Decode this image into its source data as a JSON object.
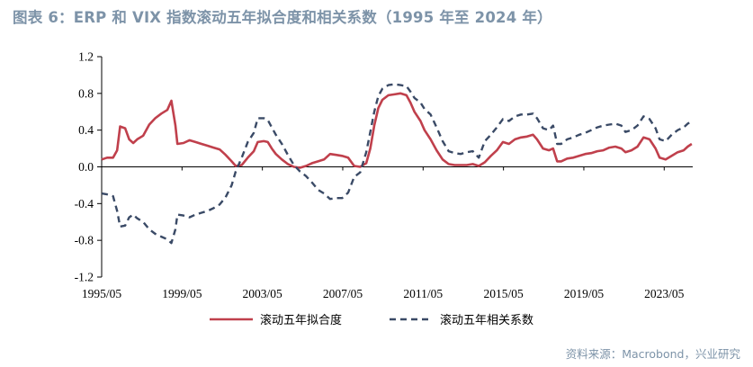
{
  "title": "图表 6：ERP 和 VIX 指数滚动五年拟合度和相关系数（1995 年至 2024 年）",
  "source": "资料来源：Macrobond，兴业研究",
  "colors": {
    "title": "#7d93a8",
    "series_fit": "#c0404c",
    "series_corr": "#3a4a66"
  },
  "chart_data": {
    "type": "line",
    "x_range": [
      1995.33,
      2024.75
    ],
    "x_ticks": [
      {
        "label": "1995/05",
        "x": 1995.33
      },
      {
        "label": "1999/05",
        "x": 1999.33
      },
      {
        "label": "2003/05",
        "x": 2003.33
      },
      {
        "label": "2007/05",
        "x": 2007.33
      },
      {
        "label": "2011/05",
        "x": 2011.33
      },
      {
        "label": "2015/05",
        "x": 2015.33
      },
      {
        "label": "2019/05",
        "x": 2019.33
      },
      {
        "label": "2023/05",
        "x": 2023.33
      }
    ],
    "ylim": [
      -1.2,
      1.2
    ],
    "y_ticks": [
      {
        "label": "1.2",
        "v": 1.2
      },
      {
        "label": "0.8",
        "v": 0.8
      },
      {
        "label": "0.4",
        "v": 0.4
      },
      {
        "label": "0.0",
        "v": 0.0
      },
      {
        "label": "-0.4",
        "v": -0.4
      },
      {
        "label": "-0.8",
        "v": -0.8
      },
      {
        "label": "-1.2",
        "v": -1.2
      }
    ],
    "legend_position": "bottom",
    "series": [
      {
        "name": "滚动五年拟合度",
        "style": "solid",
        "points": [
          [
            1995.33,
            0.08
          ],
          [
            1995.6,
            0.1
          ],
          [
            1995.9,
            0.1
          ],
          [
            1996.1,
            0.18
          ],
          [
            1996.25,
            0.44
          ],
          [
            1996.5,
            0.42
          ],
          [
            1996.7,
            0.3
          ],
          [
            1996.9,
            0.26
          ],
          [
            1997.1,
            0.3
          ],
          [
            1997.4,
            0.34
          ],
          [
            1997.7,
            0.46
          ],
          [
            1998.0,
            0.53
          ],
          [
            1998.3,
            0.58
          ],
          [
            1998.6,
            0.62
          ],
          [
            1998.8,
            0.72
          ],
          [
            1999.0,
            0.45
          ],
          [
            1999.1,
            0.25
          ],
          [
            1999.4,
            0.26
          ],
          [
            1999.7,
            0.29
          ],
          [
            2000.0,
            0.27
          ],
          [
            2000.3,
            0.25
          ],
          [
            2000.6,
            0.23
          ],
          [
            2000.9,
            0.21
          ],
          [
            2001.2,
            0.19
          ],
          [
            2001.5,
            0.13
          ],
          [
            2001.8,
            0.06
          ],
          [
            2002.0,
            0.01
          ],
          [
            2002.3,
            0.02
          ],
          [
            2002.6,
            0.1
          ],
          [
            2002.9,
            0.17
          ],
          [
            2003.1,
            0.27
          ],
          [
            2003.4,
            0.28
          ],
          [
            2003.6,
            0.27
          ],
          [
            2003.8,
            0.2
          ],
          [
            2004.0,
            0.14
          ],
          [
            2004.3,
            0.08
          ],
          [
            2004.6,
            0.03
          ],
          [
            2004.9,
            0.0
          ],
          [
            2005.2,
            -0.01
          ],
          [
            2005.5,
            0.01
          ],
          [
            2005.8,
            0.04
          ],
          [
            2006.1,
            0.06
          ],
          [
            2006.4,
            0.08
          ],
          [
            2006.7,
            0.14
          ],
          [
            2007.0,
            0.13
          ],
          [
            2007.3,
            0.12
          ],
          [
            2007.6,
            0.1
          ],
          [
            2007.9,
            0.01
          ],
          [
            2008.2,
            0.0
          ],
          [
            2008.5,
            0.04
          ],
          [
            2008.7,
            0.2
          ],
          [
            2008.9,
            0.45
          ],
          [
            2009.1,
            0.64
          ],
          [
            2009.3,
            0.73
          ],
          [
            2009.6,
            0.78
          ],
          [
            2009.9,
            0.79
          ],
          [
            2010.2,
            0.8
          ],
          [
            2010.5,
            0.78
          ],
          [
            2010.7,
            0.7
          ],
          [
            2010.9,
            0.6
          ],
          [
            2011.2,
            0.5
          ],
          [
            2011.4,
            0.4
          ],
          [
            2011.7,
            0.3
          ],
          [
            2012.0,
            0.18
          ],
          [
            2012.3,
            0.08
          ],
          [
            2012.6,
            0.03
          ],
          [
            2012.9,
            0.02
          ],
          [
            2013.2,
            0.02
          ],
          [
            2013.5,
            0.02
          ],
          [
            2013.8,
            0.03
          ],
          [
            2014.1,
            0.01
          ],
          [
            2014.4,
            0.05
          ],
          [
            2014.7,
            0.12
          ],
          [
            2015.0,
            0.18
          ],
          [
            2015.3,
            0.27
          ],
          [
            2015.6,
            0.25
          ],
          [
            2015.9,
            0.3
          ],
          [
            2016.2,
            0.32
          ],
          [
            2016.5,
            0.33
          ],
          [
            2016.8,
            0.35
          ],
          [
            2017.0,
            0.3
          ],
          [
            2017.3,
            0.2
          ],
          [
            2017.6,
            0.18
          ],
          [
            2017.8,
            0.2
          ],
          [
            2018.0,
            0.06
          ],
          [
            2018.2,
            0.06
          ],
          [
            2018.5,
            0.09
          ],
          [
            2018.8,
            0.1
          ],
          [
            2019.1,
            0.12
          ],
          [
            2019.4,
            0.14
          ],
          [
            2019.7,
            0.15
          ],
          [
            2020.0,
            0.17
          ],
          [
            2020.3,
            0.18
          ],
          [
            2020.6,
            0.21
          ],
          [
            2020.9,
            0.22
          ],
          [
            2021.2,
            0.2
          ],
          [
            2021.4,
            0.16
          ],
          [
            2021.7,
            0.18
          ],
          [
            2022.0,
            0.22
          ],
          [
            2022.3,
            0.32
          ],
          [
            2022.6,
            0.3
          ],
          [
            2022.9,
            0.2
          ],
          [
            2023.1,
            0.1
          ],
          [
            2023.4,
            0.08
          ],
          [
            2023.7,
            0.12
          ],
          [
            2024.0,
            0.16
          ],
          [
            2024.3,
            0.18
          ],
          [
            2024.5,
            0.22
          ],
          [
            2024.7,
            0.25
          ]
        ]
      },
      {
        "name": "滚动五年相关系数",
        "style": "dashed",
        "points": [
          [
            1995.33,
            -0.29
          ],
          [
            1995.6,
            -0.3
          ],
          [
            1995.9,
            -0.32
          ],
          [
            1996.1,
            -0.48
          ],
          [
            1996.25,
            -0.65
          ],
          [
            1996.5,
            -0.64
          ],
          [
            1996.7,
            -0.55
          ],
          [
            1996.9,
            -0.52
          ],
          [
            1997.1,
            -0.56
          ],
          [
            1997.4,
            -0.6
          ],
          [
            1997.7,
            -0.68
          ],
          [
            1998.0,
            -0.73
          ],
          [
            1998.3,
            -0.76
          ],
          [
            1998.6,
            -0.79
          ],
          [
            1998.8,
            -0.83
          ],
          [
            1999.0,
            -0.68
          ],
          [
            1999.1,
            -0.52
          ],
          [
            1999.4,
            -0.53
          ],
          [
            1999.7,
            -0.55
          ],
          [
            2000.0,
            -0.52
          ],
          [
            2000.3,
            -0.5
          ],
          [
            2000.6,
            -0.48
          ],
          [
            2000.9,
            -0.45
          ],
          [
            2001.2,
            -0.41
          ],
          [
            2001.5,
            -0.33
          ],
          [
            2001.8,
            -0.2
          ],
          [
            2002.0,
            -0.05
          ],
          [
            2002.3,
            0.1
          ],
          [
            2002.6,
            0.27
          ],
          [
            2002.9,
            0.37
          ],
          [
            2003.1,
            0.53
          ],
          [
            2003.4,
            0.53
          ],
          [
            2003.6,
            0.51
          ],
          [
            2003.8,
            0.43
          ],
          [
            2004.0,
            0.35
          ],
          [
            2004.3,
            0.25
          ],
          [
            2004.6,
            0.13
          ],
          [
            2004.9,
            0.02
          ],
          [
            2005.2,
            -0.05
          ],
          [
            2005.5,
            -0.1
          ],
          [
            2005.8,
            -0.17
          ],
          [
            2006.1,
            -0.25
          ],
          [
            2006.4,
            -0.29
          ],
          [
            2006.7,
            -0.35
          ],
          [
            2007.0,
            -0.34
          ],
          [
            2007.3,
            -0.34
          ],
          [
            2007.6,
            -0.28
          ],
          [
            2007.9,
            -0.11
          ],
          [
            2008.2,
            -0.06
          ],
          [
            2008.5,
            0.16
          ],
          [
            2008.7,
            0.38
          ],
          [
            2008.9,
            0.6
          ],
          [
            2009.1,
            0.77
          ],
          [
            2009.3,
            0.85
          ],
          [
            2009.6,
            0.89
          ],
          [
            2009.9,
            0.9
          ],
          [
            2010.2,
            0.89
          ],
          [
            2010.5,
            0.88
          ],
          [
            2010.7,
            0.82
          ],
          [
            2010.9,
            0.75
          ],
          [
            2011.2,
            0.7
          ],
          [
            2011.4,
            0.63
          ],
          [
            2011.7,
            0.57
          ],
          [
            2012.0,
            0.43
          ],
          [
            2012.3,
            0.28
          ],
          [
            2012.6,
            0.17
          ],
          [
            2012.9,
            0.15
          ],
          [
            2013.2,
            0.14
          ],
          [
            2013.5,
            0.16
          ],
          [
            2013.8,
            0.17
          ],
          [
            2014.1,
            0.1
          ],
          [
            2014.4,
            0.28
          ],
          [
            2014.7,
            0.35
          ],
          [
            2015.0,
            0.43
          ],
          [
            2015.3,
            0.52
          ],
          [
            2015.6,
            0.5
          ],
          [
            2015.9,
            0.55
          ],
          [
            2016.2,
            0.57
          ],
          [
            2016.5,
            0.57
          ],
          [
            2016.8,
            0.58
          ],
          [
            2017.0,
            0.53
          ],
          [
            2017.3,
            0.42
          ],
          [
            2017.6,
            0.4
          ],
          [
            2017.8,
            0.45
          ],
          [
            2018.0,
            0.25
          ],
          [
            2018.2,
            0.25
          ],
          [
            2018.5,
            0.3
          ],
          [
            2018.8,
            0.32
          ],
          [
            2019.1,
            0.35
          ],
          [
            2019.4,
            0.37
          ],
          [
            2019.7,
            0.4
          ],
          [
            2020.0,
            0.43
          ],
          [
            2020.3,
            0.45
          ],
          [
            2020.6,
            0.46
          ],
          [
            2020.9,
            0.47
          ],
          [
            2021.2,
            0.45
          ],
          [
            2021.4,
            0.38
          ],
          [
            2021.7,
            0.4
          ],
          [
            2022.0,
            0.45
          ],
          [
            2022.3,
            0.55
          ],
          [
            2022.6,
            0.52
          ],
          [
            2022.9,
            0.42
          ],
          [
            2023.1,
            0.3
          ],
          [
            2023.4,
            0.28
          ],
          [
            2023.7,
            0.35
          ],
          [
            2024.0,
            0.4
          ],
          [
            2024.3,
            0.43
          ],
          [
            2024.5,
            0.47
          ],
          [
            2024.7,
            0.5
          ]
        ]
      }
    ]
  }
}
